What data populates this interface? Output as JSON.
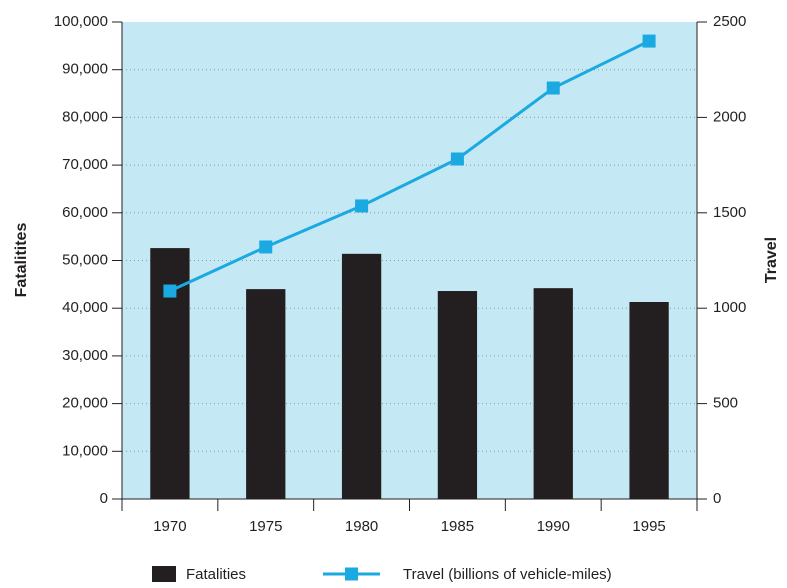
{
  "chart_data": {
    "type": "bar-line",
    "categories": [
      "1970",
      "1975",
      "1980",
      "1985",
      "1990",
      "1995"
    ],
    "series": [
      {
        "name": "Fatalities",
        "type": "bar",
        "color": "#231f20",
        "values": [
          52600,
          44000,
          51400,
          43600,
          44200,
          41300
        ]
      },
      {
        "name": "Travel (billions of vehicle-miles)",
        "type": "line",
        "axis": "y2",
        "color": "#1ba9e1",
        "values": [
          1090,
          1321,
          1536,
          1782,
          2154,
          2400
        ]
      }
    ],
    "ylabel": "Fatalitites",
    "y2label": "Travel",
    "ylim": [
      0,
      100000
    ],
    "yticks": [
      0,
      {
        "value": 10000,
        "label": "10,000"
      },
      {
        "value": 20000,
        "label": "20,000"
      },
      {
        "value": 30000,
        "label": "30,000"
      },
      {
        "value": 40000,
        "label": "40,000"
      },
      {
        "value": 50000,
        "label": "50,000"
      },
      {
        "value": 60000,
        "label": "60,000"
      },
      {
        "value": 70000,
        "label": "70,000"
      },
      {
        "value": 80000,
        "label": "80,000"
      },
      {
        "value": 90000,
        "label": "90,000"
      },
      {
        "value": 100000,
        "label": "100,000"
      }
    ],
    "y2lim": [
      0,
      2500
    ],
    "y2ticks": [
      0,
      500,
      1000,
      1500,
      2000,
      2500
    ],
    "grid": true,
    "legend": "bottom",
    "background": "#c5e8f5"
  }
}
